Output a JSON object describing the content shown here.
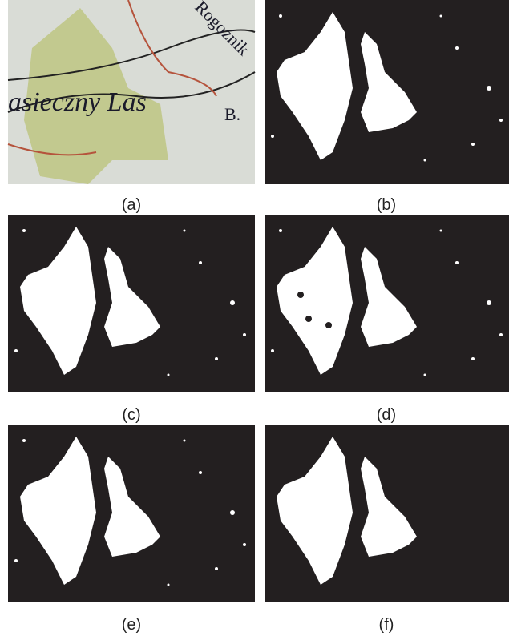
{
  "figure": {
    "panels": [
      {
        "caption": "(a)",
        "map_labels": [
          "asieczny Las",
          "Rogoźnik",
          "B."
        ]
      },
      {
        "caption": "(b)"
      },
      {
        "caption": "(c)"
      },
      {
        "caption": "(d)"
      },
      {
        "caption": "(e)"
      },
      {
        "caption": "(f)"
      }
    ]
  }
}
